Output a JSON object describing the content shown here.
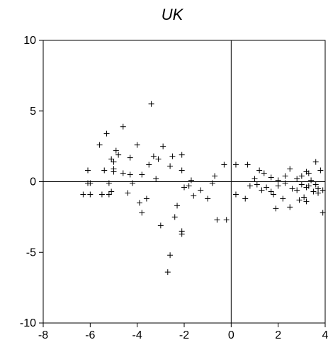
{
  "chart_data": {
    "type": "scatter",
    "title": "UK",
    "xlabel": "",
    "ylabel": "",
    "xlim": [
      -8,
      4
    ],
    "ylim": [
      -10,
      10
    ],
    "xticks": [
      -8,
      -6,
      -4,
      -2,
      0,
      2,
      4
    ],
    "yticks": [
      -10,
      -5,
      0,
      5,
      10
    ],
    "marker": "plus",
    "zero_lines": true,
    "grid": false,
    "legend": "none",
    "points": [
      [
        -3.4,
        5.5
      ],
      [
        -4.6,
        3.9
      ],
      [
        -5.3,
        3.4
      ],
      [
        -5.6,
        2.6
      ],
      [
        -4.0,
        2.6
      ],
      [
        -2.9,
        2.5
      ],
      [
        -4.9,
        2.2
      ],
      [
        -4.8,
        1.9
      ],
      [
        -2.1,
        1.9
      ],
      [
        -3.3,
        1.8
      ],
      [
        -2.5,
        1.8
      ],
      [
        -4.3,
        1.7
      ],
      [
        -3.1,
        1.6
      ],
      [
        -5.1,
        1.6
      ],
      [
        -5.0,
        1.4
      ],
      [
        -3.5,
        1.2
      ],
      [
        -2.6,
        1.1
      ],
      [
        -0.3,
        1.2
      ],
      [
        0.2,
        1.2
      ],
      [
        0.7,
        1.2
      ],
      [
        -5.0,
        0.9
      ],
      [
        -5.4,
        0.8
      ],
      [
        -6.1,
        0.8
      ],
      [
        -5.0,
        0.7
      ],
      [
        -4.6,
        0.6
      ],
      [
        -4.3,
        0.5
      ],
      [
        -3.8,
        0.5
      ],
      [
        -3.2,
        0.2
      ],
      [
        -2.1,
        0.8
      ],
      [
        -1.7,
        0.1
      ],
      [
        -1.8,
        -0.3
      ],
      [
        -1.3,
        -0.6
      ],
      [
        -0.8,
        -0.1
      ],
      [
        -0.7,
        0.4
      ],
      [
        -2.0,
        -0.4
      ],
      [
        -4.2,
        -0.1
      ],
      [
        -5.2,
        -0.1
      ],
      [
        -6.1,
        -0.1
      ],
      [
        -6.0,
        -0.1
      ],
      [
        -6.3,
        -0.9
      ],
      [
        -6.0,
        -0.9
      ],
      [
        -5.5,
        -0.9
      ],
      [
        -5.2,
        -0.9
      ],
      [
        -5.1,
        -0.7
      ],
      [
        -4.4,
        -0.8
      ],
      [
        -3.6,
        -1.2
      ],
      [
        -3.9,
        -1.5
      ],
      [
        -3.8,
        -2.2
      ],
      [
        -2.3,
        -1.7
      ],
      [
        -2.4,
        -2.5
      ],
      [
        -3.0,
        -3.1
      ],
      [
        -2.1,
        -3.5
      ],
      [
        -2.1,
        -3.7
      ],
      [
        -2.6,
        -5.2
      ],
      [
        -2.7,
        -6.4
      ],
      [
        -1.6,
        -1.0
      ],
      [
        -1.0,
        -1.2
      ],
      [
        -0.6,
        -2.7
      ],
      [
        -0.2,
        -2.7
      ],
      [
        0.2,
        -0.9
      ],
      [
        0.6,
        -1.2
      ],
      [
        0.8,
        -0.3
      ],
      [
        1.0,
        0.2
      ],
      [
        1.2,
        0.8
      ],
      [
        1.4,
        0.6
      ],
      [
        1.7,
        0.3
      ],
      [
        2.0,
        0.1
      ],
      [
        2.3,
        0.4
      ],
      [
        2.5,
        0.9
      ],
      [
        2.8,
        0.2
      ],
      [
        3.0,
        0.4
      ],
      [
        3.2,
        0.7
      ],
      [
        3.3,
        0.6
      ],
      [
        3.6,
        1.4
      ],
      [
        3.8,
        0.8
      ],
      [
        1.3,
        -0.6
      ],
      [
        1.7,
        -0.7
      ],
      [
        1.8,
        -0.9
      ],
      [
        1.9,
        -1.9
      ],
      [
        2.2,
        -1.2
      ],
      [
        2.5,
        -1.8
      ],
      [
        2.9,
        -1.3
      ],
      [
        3.1,
        -1.1
      ],
      [
        3.2,
        -0.4
      ],
      [
        3.5,
        -0.7
      ],
      [
        3.7,
        -0.5
      ],
      [
        3.9,
        -2.2
      ],
      [
        2.0,
        -0.3
      ],
      [
        2.6,
        -0.5
      ],
      [
        3.0,
        -0.2
      ],
      [
        3.4,
        0.1
      ],
      [
        3.9,
        -0.6
      ],
      [
        1.5,
        -0.4
      ],
      [
        2.8,
        -0.6
      ],
      [
        3.3,
        -0.3
      ],
      [
        3.6,
        -0.2
      ],
      [
        1.1,
        -0.2
      ],
      [
        3.2,
        -1.4
      ],
      [
        3.7,
        -0.8
      ],
      [
        2.3,
        -0.1
      ]
    ]
  }
}
